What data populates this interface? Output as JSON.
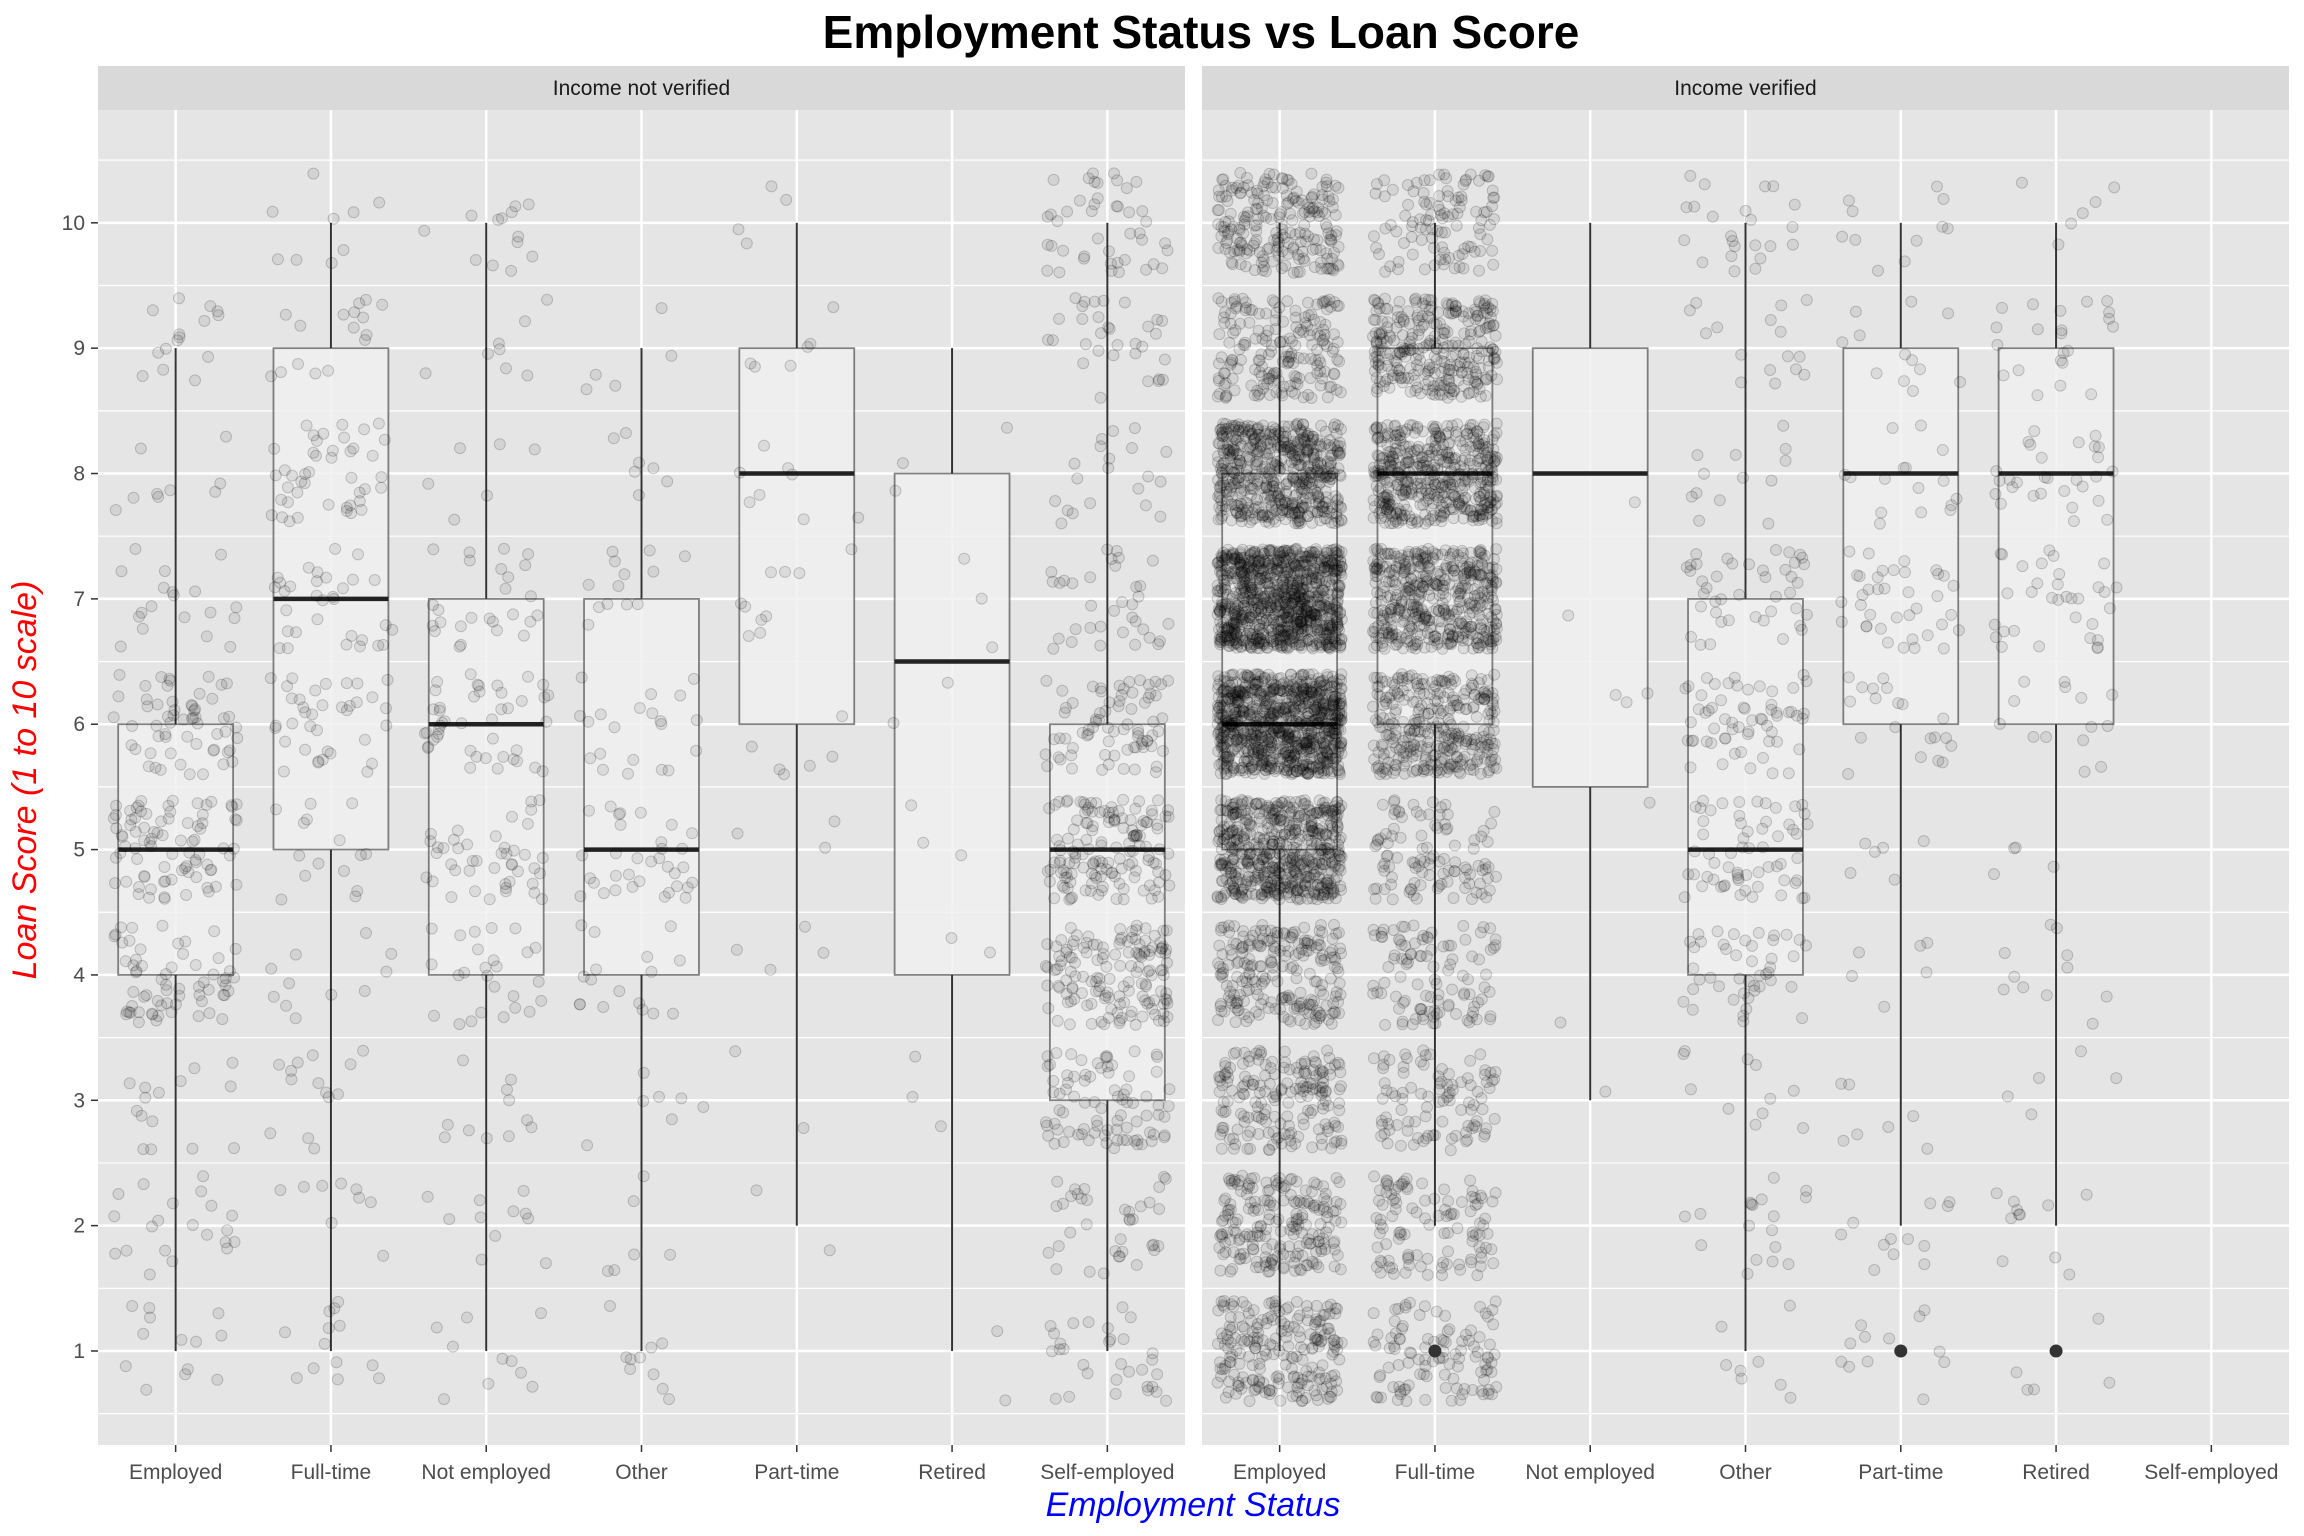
{
  "chart_data": {
    "type": "boxplot",
    "title": "Employment Status vs Loan Score",
    "xlabel": "Employment Status",
    "ylabel": "Loan Score (1 to 10 scale)",
    "ylim": [
      0.25,
      10.9
    ],
    "y_ticks": [
      1,
      2,
      3,
      4,
      5,
      6,
      7,
      8,
      9,
      10
    ],
    "categories": [
      "Employed",
      "Full-time",
      "Not employed",
      "Other",
      "Part-time",
      "Retired",
      "Self-employed"
    ],
    "grid": true,
    "overlay": "jittered points (semi-transparent)",
    "colors": {
      "panel_bg": "#e5e5e5",
      "grid": "#ffffff",
      "strip_bg": "#d9d9d9",
      "box_fill": "#f0f0f0",
      "box_line": "#333333",
      "points": "#000000",
      "xlabel": "#0000ff",
      "ylabel": "#ff0000"
    },
    "facets": [
      {
        "label": "Income not verified",
        "boxes": [
          {
            "category": "Employed",
            "min": 1,
            "q1": 4,
            "median": 5,
            "q3": 6,
            "max": 9,
            "outliers": [],
            "points": 300,
            "jitter_min": 0.6,
            "jitter_max": 9.4
          },
          {
            "category": "Full-time",
            "min": 1,
            "q1": 5,
            "median": 7,
            "q3": 9,
            "max": 10,
            "outliers": [],
            "points": 200,
            "jitter_min": 0.6,
            "jitter_max": 10.4
          },
          {
            "category": "Not employed",
            "min": 1,
            "q1": 4,
            "median": 6,
            "q3": 7,
            "max": 10,
            "outliers": [],
            "points": 200,
            "jitter_min": 0.6,
            "jitter_max": 10.4
          },
          {
            "category": "Other",
            "min": 1,
            "q1": 4,
            "median": 5,
            "q3": 7,
            "max": 9,
            "outliers": [],
            "points": 120,
            "jitter_min": 0.6,
            "jitter_max": 9.4
          },
          {
            "category": "Part-time",
            "min": 2,
            "q1": 6,
            "median": 8,
            "q3": 9,
            "max": 10,
            "outliers": [],
            "points": 45,
            "jitter_min": 1.6,
            "jitter_max": 10.4
          },
          {
            "category": "Retired",
            "min": 1,
            "q1": 4,
            "median": 6.5,
            "q3": 8,
            "max": 9,
            "outliers": [],
            "points": 18,
            "jitter_min": 0.6,
            "jitter_max": 9.4
          },
          {
            "category": "Self-employed",
            "min": 1,
            "q1": 3,
            "median": 5,
            "q3": 6,
            "max": 10,
            "outliers": [],
            "points": 650,
            "jitter_min": 0.6,
            "jitter_max": 10.4
          }
        ]
      },
      {
        "label": "Income verified",
        "boxes": [
          {
            "category": "Employed",
            "min": 1,
            "q1": 5,
            "median": 6,
            "q3": 8,
            "max": 10,
            "outliers": [],
            "points": 4200,
            "jitter_min": 0.6,
            "jitter_max": 10.4
          },
          {
            "category": "Full-time",
            "min": 2,
            "q1": 6,
            "median": 8,
            "q3": 9,
            "max": 10,
            "outliers": [
              1
            ],
            "points": 2200,
            "jitter_min": 0.6,
            "jitter_max": 10.4
          },
          {
            "category": "Not employed",
            "min": 3,
            "q1": 5.5,
            "median": 8,
            "q3": 9,
            "max": 10,
            "outliers": [],
            "points": 8,
            "jitter_min": 2.6,
            "jitter_max": 10.4
          },
          {
            "category": "Other",
            "min": 1,
            "q1": 4,
            "median": 5,
            "q3": 7,
            "max": 10,
            "outliers": [],
            "points": 300,
            "jitter_min": 0.6,
            "jitter_max": 10.4
          },
          {
            "category": "Part-time",
            "min": 2,
            "q1": 6,
            "median": 8,
            "q3": 9,
            "max": 10,
            "outliers": [
              1
            ],
            "points": 140,
            "jitter_min": 0.6,
            "jitter_max": 10.4
          },
          {
            "category": "Retired",
            "min": 2,
            "q1": 6,
            "median": 8,
            "q3": 9,
            "max": 10,
            "outliers": [
              1
            ],
            "points": 140,
            "jitter_min": 0.6,
            "jitter_max": 10.4
          }
        ]
      }
    ]
  }
}
